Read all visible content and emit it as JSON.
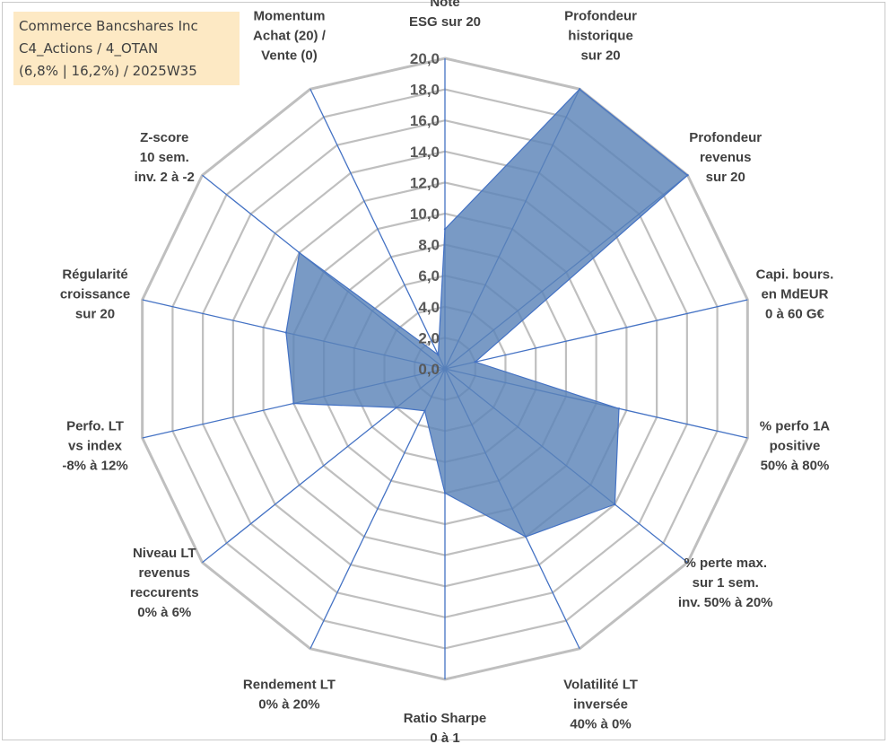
{
  "info_box": {
    "line1": "Commerce Bancshares Inc",
    "line2": "C4_Actions / 4_OTAN",
    "line3": "(6,8% | 16,2%) / 2025W35"
  },
  "colors": {
    "grid": "#bfbfbf",
    "spokes": "#4472c4",
    "fill": "#5b84b8",
    "outline": "#4472c4"
  },
  "chart_data": {
    "type": "radar",
    "grid": true,
    "rmin": 0,
    "rmax": 20,
    "tick_step": 2,
    "tick_labels": [
      "0,0",
      "2,0",
      "4,0",
      "6,0",
      "8,0",
      "10,0",
      "12,0",
      "14,0",
      "16,0",
      "18,0",
      "20,0"
    ],
    "axes": [
      {
        "label": [
          "Note",
          "ESG sur 20"
        ],
        "value": 9
      },
      {
        "label": [
          "Profondeur",
          "historique",
          "sur 20"
        ],
        "value": 20
      },
      {
        "label": [
          "Profondeur",
          "revenus",
          "sur 20"
        ],
        "value": 20
      },
      {
        "label": [
          "Capi. bours.",
          "en MdEUR",
          "0 à 60 G€"
        ],
        "value": 2
      },
      {
        "label": [
          "% perfo 1A",
          "positive",
          "50% à 80%"
        ],
        "value": 11.5
      },
      {
        "label": [
          "% perte max.",
          "sur 1 sem.",
          "inv. 50% à 20%"
        ],
        "value": 14
      },
      {
        "label": [
          "Volatilité LT",
          "inversée",
          "40% à 0%"
        ],
        "value": 12
      },
      {
        "label": [
          "Ratio Sharpe",
          "0 à 1"
        ],
        "value": 8
      },
      {
        "label": [
          "Rendement LT",
          "0% à 20%"
        ],
        "value": 3
      },
      {
        "label": [
          "Niveau LT",
          "revenus",
          "reccurents",
          "0% à 6%"
        ],
        "value": 4
      },
      {
        "label": [
          "Perfo. LT",
          "vs index",
          "-8% à 12%"
        ],
        "value": 10
      },
      {
        "label": [
          "Régularité",
          "croissance",
          "sur 20"
        ],
        "value": 10.5
      },
      {
        "label": [
          "Z-score",
          "10 sem.",
          "inv. 2 à -2"
        ],
        "value": 12
      },
      {
        "label": [
          "Momentum",
          "Achat (20) /",
          "Vente (0)"
        ],
        "value": 1
      }
    ]
  }
}
